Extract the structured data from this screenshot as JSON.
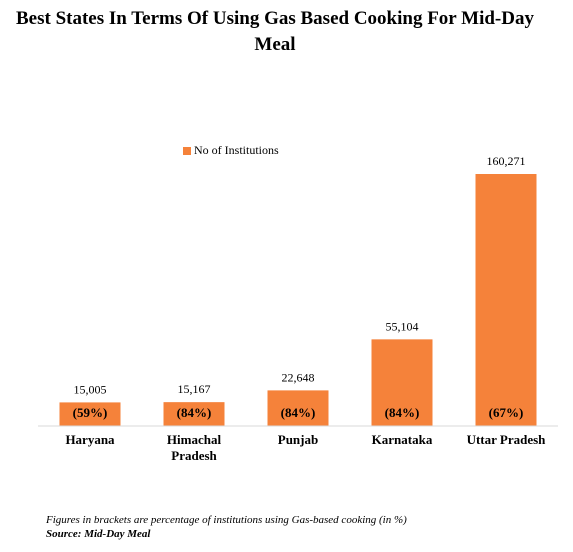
{
  "title": "Best States In Terms Of Using Gas Based Cooking For Mid-Day Meal",
  "chart_data": {
    "type": "bar",
    "categories": [
      "Haryana",
      "Himachal Pradesh",
      "Punjab",
      "Karnataka",
      "Uttar Pradesh"
    ],
    "series": [
      {
        "name": "No of Institutions",
        "color": "#f5823a",
        "values": [
          15005,
          15167,
          22648,
          55104,
          160271
        ],
        "value_labels": [
          "15,005",
          "15,167",
          "22,648",
          "55,104",
          "160,271"
        ]
      }
    ],
    "annotations": [
      "(59%)",
      "(84%)",
      "(84%)",
      "(84%)",
      "(67%)"
    ]
  },
  "footnote": "Figures in brackets are percentage of institutions using Gas-based cooking (in %)",
  "source": "Source: Mid-Day Meal"
}
